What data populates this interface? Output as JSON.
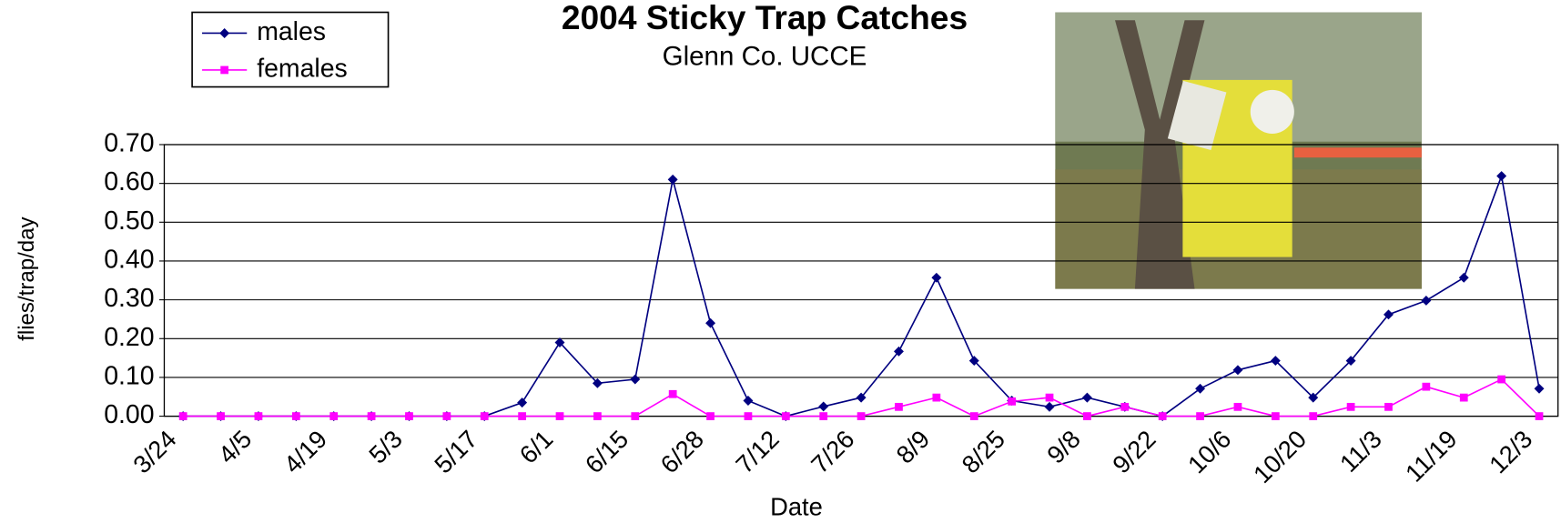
{
  "chart_data": {
    "type": "line",
    "title": "2004 Sticky Trap Catches",
    "subtitle": "Glenn Co. UCCE",
    "x_label": "Date",
    "y_label": "flies/trap/day",
    "categories": [
      "3/24",
      null,
      "4/5",
      null,
      "4/19",
      null,
      "5/3",
      null,
      "5/17",
      null,
      "6/1",
      null,
      "6/15",
      null,
      "6/28",
      null,
      "7/12",
      null,
      "7/26",
      null,
      "8/9",
      null,
      "8/25",
      null,
      "9/8",
      null,
      "9/22",
      null,
      "10/6",
      null,
      "10/20",
      null,
      "11/3",
      null,
      "11/19",
      null,
      "12/3"
    ],
    "series": [
      {
        "name": "males",
        "color": "#000080",
        "marker": "diamond",
        "values": [
          0,
          0,
          0,
          0,
          0,
          0,
          0,
          0,
          0,
          0.035,
          0.19,
          0.085,
          0.095,
          0.61,
          0.24,
          0.04,
          0,
          0.025,
          0.048,
          0.167,
          0.357,
          0.143,
          0.04,
          0.024,
          0.048,
          0.024,
          0,
          0.071,
          0.119,
          0.143,
          0.048,
          0.143,
          0.262,
          0.298,
          0.357,
          0.619,
          0.071
        ]
      },
      {
        "name": "females",
        "color": "#ff00ff",
        "marker": "square",
        "values": [
          0,
          0,
          0,
          0,
          0,
          0,
          0,
          0,
          0,
          0,
          0,
          0,
          0,
          0.057,
          0,
          0,
          0,
          0,
          0,
          0.024,
          0.048,
          0,
          0.038,
          0.048,
          0,
          0.024,
          0,
          0,
          0.024,
          0,
          0,
          0.024,
          0.024,
          0.076,
          0.048,
          0.095,
          0
        ]
      }
    ],
    "ylim": [
      0,
      0.7
    ],
    "yticks": [
      {
        "value": 0,
        "label": "0.00"
      },
      {
        "value": 0.1,
        "label": "0.10"
      },
      {
        "value": 0.2,
        "label": "0.20"
      },
      {
        "value": 0.3,
        "label": "0.30"
      },
      {
        "value": 0.4,
        "label": "0.40"
      },
      {
        "value": 0.5,
        "label": "0.50"
      },
      {
        "value": 0.6,
        "label": "0.60"
      },
      {
        "value": 0.7,
        "label": "0.70"
      }
    ],
    "grid": true,
    "legend": "top-left"
  }
}
